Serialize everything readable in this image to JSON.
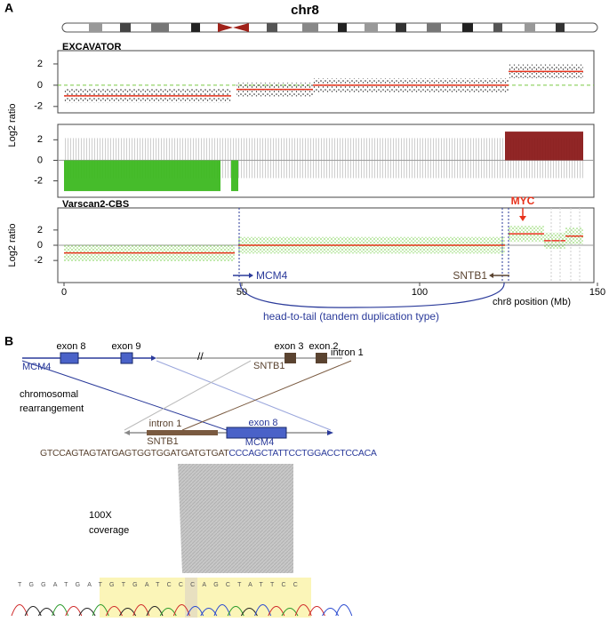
{
  "panel_a": {
    "label": "A",
    "ideogram_title": "chr8"
  },
  "chart_data": [
    {
      "type": "segments",
      "title": "EXCAVATOR",
      "ylim": [
        -2.6,
        3.25
      ],
      "yticks": [
        -2,
        0,
        2
      ],
      "xlim": [
        0,
        150
      ],
      "segment_start": [
        0,
        48.5,
        70,
        125
      ],
      "segment_end": [
        47,
        70,
        125,
        146
      ],
      "values": [
        -1,
        -0.4,
        0,
        1.3
      ],
      "color": "#e8331c",
      "dot_color": "#222222"
    },
    {
      "type": "regions",
      "ylabel": "Log2 ratio",
      "ylim": [
        -3.6,
        3.5
      ],
      "yticks": [
        -2,
        0,
        2
      ],
      "xlim": [
        0,
        150
      ],
      "segment_start": [
        0,
        47,
        124
      ],
      "segment_end": [
        44,
        49,
        146
      ],
      "values": [
        -3,
        -3,
        2.8
      ],
      "colors": [
        "#3cb820",
        "#3cb820",
        "#8b1a1a"
      ],
      "dot_color": "#bbbbbb"
    },
    {
      "type": "segments",
      "title": "Varscan2-CBS",
      "ylabel": "Log2 ratio",
      "ylim": [
        -4.9,
        4.9
      ],
      "yticks": [
        -2,
        0,
        2
      ],
      "xlim": [
        0,
        150
      ],
      "xticks": [
        0,
        50,
        100,
        150
      ],
      "xlabel": "chr8 position (Mb)",
      "segment_start": [
        0,
        49,
        125,
        135,
        141
      ],
      "segment_end": [
        48,
        124,
        135,
        141,
        146
      ],
      "values": [
        -1,
        0,
        1.5,
        0.6,
        1.2
      ],
      "color": "#e8331c",
      "dot_color": "#8fd86a"
    }
  ],
  "annotations": {
    "mcm4": "MCM4",
    "sntb1": "SNTB1",
    "myc": "MYC",
    "arc_label": "head-to-tail (tandem duplication type)"
  },
  "panel_b": {
    "label": "B",
    "top": {
      "exon8": "exon 8",
      "exon9": "exon 9",
      "exon3": "exon 3",
      "exon2": "exon 2",
      "intron1": "intron 1",
      "mcm4": "MCM4",
      "sntb1": "SNTB1"
    },
    "rearrangement": [
      "chromosomal",
      "rearrangement"
    ],
    "fusion": {
      "intron1": "intron 1",
      "exon8": "exon 8",
      "sntb1": "SNTB1",
      "mcm4": "MCM4"
    },
    "sequence": {
      "sntb1_part": "GTCCAGTAGTATGAGTGGTGGATGATGTGAT",
      "mcm4_part": "CCCAGCTATTCCTGGACCTCCACA"
    },
    "coverage": [
      "100X",
      "coverage"
    ],
    "chromatogram_bases": "TGGATGATGTGATCCCAGCTATTCC"
  }
}
